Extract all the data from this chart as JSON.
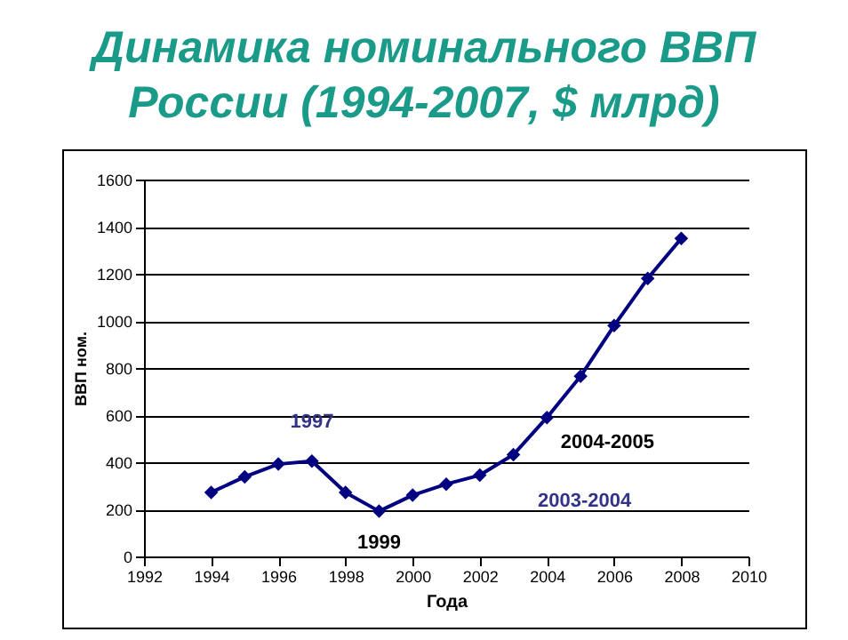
{
  "chart_data": {
    "type": "line",
    "title": "Динамика номинального ВВП России (1994-2007, $ млрд)",
    "xlabel": "Года",
    "ylabel": "ВВП ном.",
    "x": [
      1994,
      1995,
      1996,
      1997,
      1998,
      1999,
      2000,
      2001,
      2002,
      2003,
      2004,
      2005,
      2006,
      2007,
      2008
    ],
    "series": [
      {
        "color": "#000080",
        "values": [
          272,
          338,
          392,
          405,
          272,
          192,
          260,
          307,
          345,
          432,
          590,
          765,
          980,
          1180,
          1350
        ]
      }
    ],
    "xlim": [
      1992,
      2010
    ],
    "xticks": [
      1992,
      1994,
      1996,
      1998,
      2000,
      2002,
      2004,
      2006,
      2008,
      2010
    ],
    "ylim": [
      0,
      1600
    ],
    "yticks": [
      0,
      200,
      400,
      600,
      800,
      1000,
      1200,
      1400,
      1600
    ],
    "grid": "y",
    "marker": "diamond",
    "line_style": "solid",
    "annotations": [
      {
        "text": "1997",
        "x": 1997,
        "y": 405
      },
      {
        "text": "1999",
        "x": 1999,
        "y": 192
      },
      {
        "text": "2004-2005",
        "x": 2004,
        "y": 590
      },
      {
        "text": "2003-2004",
        "x": 2003,
        "y": 432
      }
    ]
  }
}
